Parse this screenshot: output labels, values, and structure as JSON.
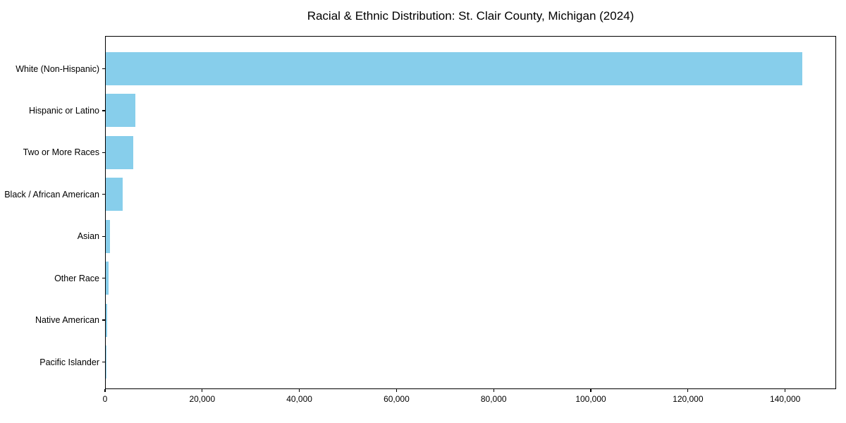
{
  "chart_data": {
    "type": "bar",
    "orientation": "horizontal",
    "title": "Racial & Ethnic Distribution: St. Clair County, Michigan (2024)",
    "categories": [
      "White (Non-Hispanic)",
      "Hispanic or Latino",
      "Two or More Races",
      "Black / African American",
      "Asian",
      "Other Race",
      "Native American",
      "Pacific Islander"
    ],
    "values": [
      143400,
      6100,
      5700,
      3440,
      800,
      590,
      220,
      40
    ],
    "xlabel": "",
    "ylabel": "",
    "xlim": [
      0,
      150500
    ],
    "xticks": [
      0,
      20000,
      40000,
      60000,
      80000,
      100000,
      120000,
      140000
    ],
    "xtick_labels": [
      "0",
      "20,000",
      "40,000",
      "60,000",
      "80,000",
      "100,000",
      "120,000",
      "140,000"
    ],
    "bar_color": "#87CEEB",
    "text_color": "#000000",
    "grid": false,
    "legend": null
  }
}
